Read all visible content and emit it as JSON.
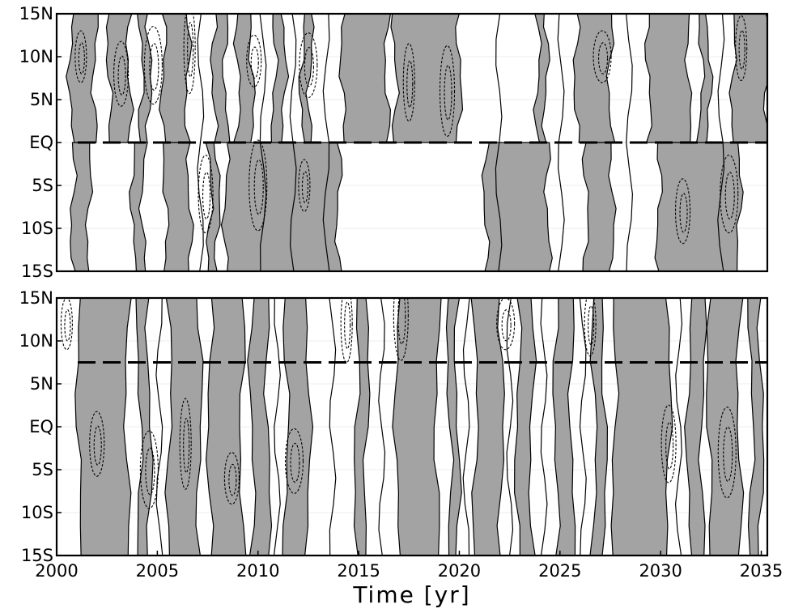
{
  "chart_data": [
    {
      "type": "heatmap",
      "panel": "top",
      "xlabel": "Time [yr]",
      "ylabel": "",
      "xlim": [
        2000,
        2035.3
      ],
      "ylim": [
        -15,
        15
      ],
      "y_ticks": [
        {
          "value": 15,
          "label": "15N"
        },
        {
          "value": 10,
          "label": "10N"
        },
        {
          "value": 5,
          "label": "5N"
        },
        {
          "value": 0,
          "label": "EQ"
        },
        {
          "value": -5,
          "label": "5S"
        },
        {
          "value": -10,
          "label": "10S"
        },
        {
          "value": -15,
          "label": "15S"
        }
      ],
      "x_ticks": [],
      "reference_line": {
        "y": 0,
        "style": "long-dash"
      },
      "shaded_color": "#a3a3a3",
      "north_shaded_intervals": [
        [
          2000.7,
          2001.9
        ],
        [
          2002.6,
          2003.6
        ],
        [
          2004.2,
          2004.6
        ],
        [
          2005.3,
          2006.5
        ],
        [
          2007.8,
          2008.4
        ],
        [
          2009.0,
          2009.7
        ],
        [
          2010.8,
          2011.3
        ],
        [
          2012.2,
          2012.6
        ],
        [
          2014.2,
          2016.4
        ],
        [
          2016.8,
          2020.0
        ],
        [
          2023.9,
          2024.3
        ],
        [
          2025.8,
          2027.5
        ],
        [
          2029.4,
          2031.4
        ],
        [
          2032.0,
          2032.4
        ],
        [
          2033.6,
          2035.3
        ]
      ],
      "south_shaded_intervals": [
        [
          2000.8,
          2001.6
        ],
        [
          2003.8,
          2004.3
        ],
        [
          2005.4,
          2006.6
        ],
        [
          2007.6,
          2008.0
        ],
        [
          2008.4,
          2014.0
        ],
        [
          2021.3,
          2024.4
        ],
        [
          2026.3,
          2027.6
        ],
        [
          2029.9,
          2033.9
        ]
      ],
      "dashed_contours": [
        {
          "t": 2001.2,
          "y": 10
        },
        {
          "t": 2003.2,
          "y": 8
        },
        {
          "t": 2004.8,
          "y": 9
        },
        {
          "t": 2006.6,
          "y": 11
        },
        {
          "t": 2009.8,
          "y": 9.5
        },
        {
          "t": 2012.5,
          "y": 9
        },
        {
          "t": 2017.5,
          "y": 7
        },
        {
          "t": 2019.4,
          "y": 6
        },
        {
          "t": 2027.1,
          "y": 10
        },
        {
          "t": 2034.0,
          "y": 11
        },
        {
          "t": 2007.4,
          "y": -6
        },
        {
          "t": 2010.0,
          "y": -5
        },
        {
          "t": 2012.3,
          "y": -5
        },
        {
          "t": 2031.1,
          "y": -8
        },
        {
          "t": 2033.4,
          "y": -6
        }
      ]
    },
    {
      "type": "heatmap",
      "panel": "bottom",
      "xlabel": "Time [yr]",
      "ylabel": "",
      "xlim": [
        2000,
        2035.3
      ],
      "ylim": [
        -15,
        15
      ],
      "y_ticks": [
        {
          "value": 15,
          "label": "15N"
        },
        {
          "value": 10,
          "label": "10N"
        },
        {
          "value": 5,
          "label": "5N"
        },
        {
          "value": 0,
          "label": "EQ"
        },
        {
          "value": -5,
          "label": "5S"
        },
        {
          "value": -10,
          "label": "10S"
        },
        {
          "value": -15,
          "label": "15S"
        }
      ],
      "x_ticks": [
        {
          "value": 2000,
          "label": "2000"
        },
        {
          "value": 2005,
          "label": "2005"
        },
        {
          "value": 2010,
          "label": "2010"
        },
        {
          "value": 2015,
          "label": "2015"
        },
        {
          "value": 2020,
          "label": "2020"
        },
        {
          "value": 2025,
          "label": "2025"
        },
        {
          "value": 2030,
          "label": "2030"
        },
        {
          "value": 2035,
          "label": "2035"
        }
      ],
      "reference_line": {
        "y": 7.5,
        "style": "long-dash"
      },
      "shaded_color": "#a3a3a3",
      "shaded_intervals": [
        [
          2001.1,
          2003.5
        ],
        [
          2004.1,
          2004.6
        ],
        [
          2005.6,
          2007.1
        ],
        [
          2007.6,
          2009.2
        ],
        [
          2009.7,
          2010.5
        ],
        [
          2011.4,
          2012.5
        ],
        [
          2014.9,
          2015.4
        ],
        [
          2016.9,
          2018.9
        ],
        [
          2019.5,
          2019.9
        ],
        [
          2020.8,
          2022.1
        ],
        [
          2022.9,
          2023.6
        ],
        [
          2024.8,
          2025.6
        ],
        [
          2026.7,
          2027.2
        ],
        [
          2027.7,
          2030.4
        ],
        [
          2031.4,
          2032.1
        ],
        [
          2032.4,
          2033.9
        ],
        [
          2034.5,
          2035.0
        ]
      ],
      "dashed_contours": [
        {
          "t": 2000.5,
          "y": 12
        },
        {
          "t": 2002.0,
          "y": -2
        },
        {
          "t": 2004.6,
          "y": -5
        },
        {
          "t": 2006.4,
          "y": -2
        },
        {
          "t": 2008.7,
          "y": -6
        },
        {
          "t": 2011.8,
          "y": -4
        },
        {
          "t": 2014.4,
          "y": 12
        },
        {
          "t": 2017.1,
          "y": 13
        },
        {
          "t": 2022.3,
          "y": 12
        },
        {
          "t": 2026.5,
          "y": 12
        },
        {
          "t": 2030.4,
          "y": -2
        },
        {
          "t": 2033.3,
          "y": -3
        }
      ]
    }
  ]
}
